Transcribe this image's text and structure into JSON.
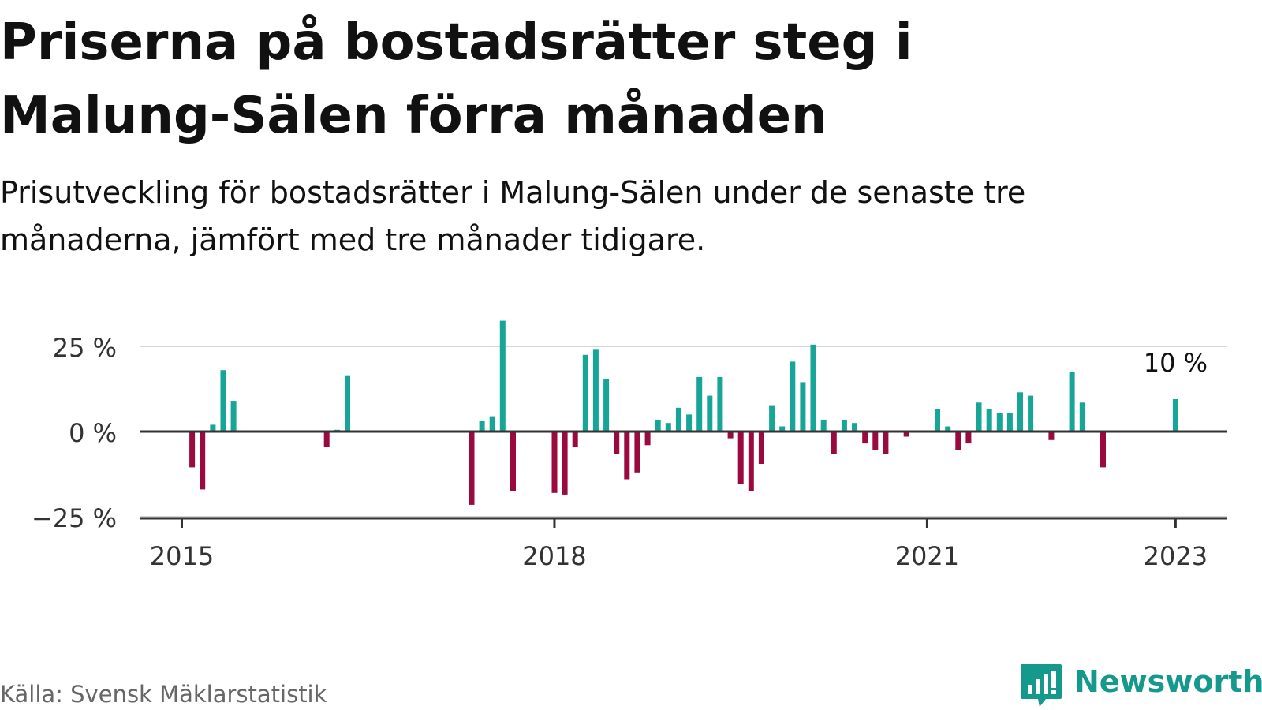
{
  "title": "Priserna på bostadsrätter steg i Malung-Sälen förra månaden",
  "subtitle": "Prisutveckling för bostadsrätter i Malung-Sälen under de senaste tre månaderna, jämfört med tre månader tidigare.",
  "source": "Källa: Svensk Mäklarstatistik",
  "brand": "Newsworthy",
  "colors": {
    "positive": "#16a596",
    "negative": "#9b0a3f",
    "grid": "#d6d6d6",
    "axis": "#333333",
    "brand": "#16998d"
  },
  "chart_data": {
    "type": "bar",
    "title": "Priserna på bostadsrätter steg i Malung-Sälen förra månaden",
    "subtitle": "Prisutveckling för bostadsrätter i Malung-Sälen under de senaste tre månaderna, jämfört med tre månader tidigare.",
    "xlabel": "",
    "ylabel": "",
    "x_range": [
      "2014-09",
      "2023-06"
    ],
    "ylim": [
      -25,
      37
    ],
    "y_ticks": [
      25,
      0,
      -25
    ],
    "y_tick_labels": [
      "25 %",
      "0 %",
      "−25 %"
    ],
    "x_ticks": [
      "2015-01",
      "2018-01",
      "2021-01",
      "2023-01"
    ],
    "x_tick_labels": [
      "2015",
      "2018",
      "2021",
      "2023"
    ],
    "grid": "horizontal",
    "legend": "none",
    "annotations": [
      {
        "text": "10 %",
        "x": "2023-01",
        "y": 10
      }
    ],
    "x": [
      "2015-02",
      "2015-03",
      "2015-04",
      "2015-05",
      "2015-06",
      "2016-03",
      "2016-04",
      "2016-05",
      "2017-05",
      "2017-06",
      "2017-07",
      "2017-08",
      "2017-09",
      "2018-01",
      "2018-02",
      "2018-03",
      "2018-04",
      "2018-05",
      "2018-06",
      "2018-07",
      "2018-08",
      "2018-09",
      "2018-10",
      "2018-11",
      "2018-12",
      "2019-01",
      "2019-02",
      "2019-03",
      "2019-04",
      "2019-05",
      "2019-06",
      "2019-07",
      "2019-08",
      "2019-09",
      "2019-10",
      "2019-11",
      "2019-12",
      "2020-01",
      "2020-02",
      "2020-03",
      "2020-04",
      "2020-05",
      "2020-06",
      "2020-07",
      "2020-08",
      "2020-09",
      "2020-11",
      "2021-02",
      "2021-03",
      "2021-04",
      "2021-05",
      "2021-06",
      "2021-07",
      "2021-08",
      "2021-09",
      "2021-10",
      "2021-11",
      "2022-01",
      "2022-03",
      "2022-04",
      "2022-06",
      "2023-01"
    ],
    "values": [
      -10.5,
      -17,
      2,
      18,
      9,
      -4.5,
      0.5,
      16.5,
      -21.5,
      3,
      4.5,
      32.5,
      -17.5,
      -18,
      -18.5,
      -4.5,
      22.5,
      24,
      15.5,
      -6.5,
      -14,
      -12,
      -4,
      3.5,
      2.5,
      7,
      5,
      16,
      10.5,
      16,
      -2,
      -15.5,
      -17.5,
      -9.5,
      7.5,
      1.5,
      20.5,
      14.5,
      25.5,
      3.5,
      -6.5,
      3.5,
      2.5,
      -3.5,
      -5.5,
      -6.5,
      -1.5,
      6.5,
      1.5,
      -5.5,
      -3.5,
      8.5,
      6.5,
      5.5,
      5.5,
      11.5,
      10.5,
      -2.5,
      17.5,
      8.5,
      -10.5,
      9.5
    ]
  }
}
